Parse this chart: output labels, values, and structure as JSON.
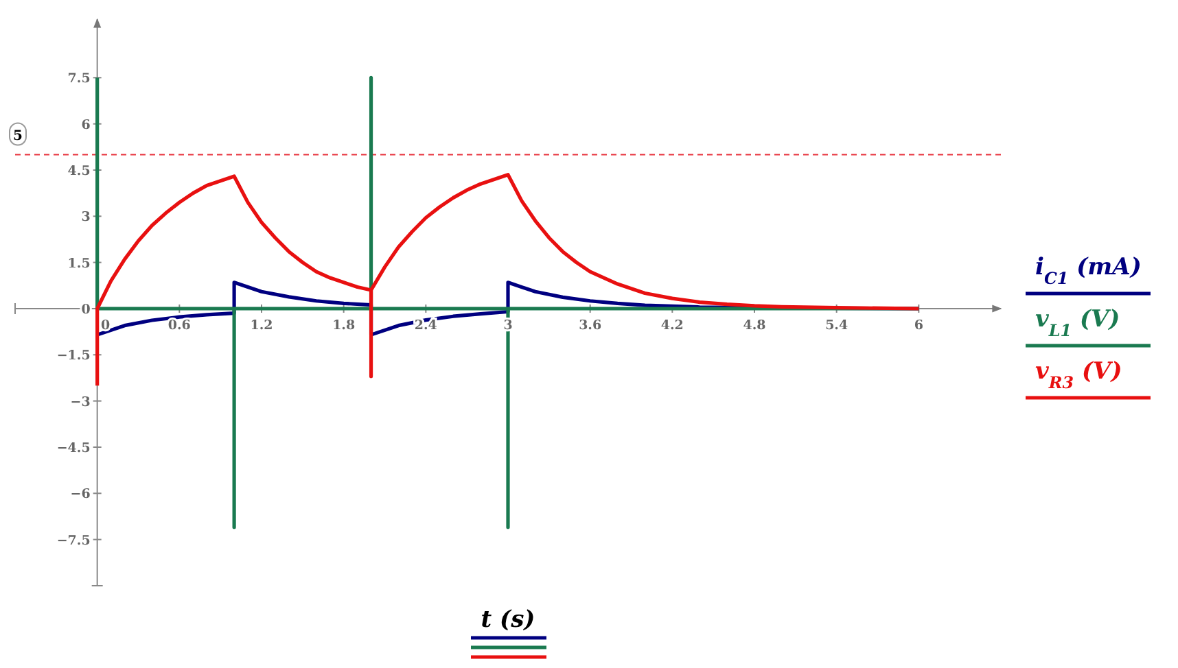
{
  "chart_data": {
    "type": "line",
    "xlabel": "t (s)",
    "xlim": [
      -0.6,
      6.6
    ],
    "ylim": [
      -9,
      9.4
    ],
    "xticks": [
      0,
      0.6,
      1.2,
      1.8,
      2.4,
      3,
      3.6,
      4.2,
      4.8,
      5.4,
      6
    ],
    "yticks": [
      -7.5,
      -6,
      -4.5,
      -3,
      -1.5,
      0,
      1.5,
      3,
      4.5,
      6,
      7.5
    ],
    "grid": false,
    "legend": "right",
    "marker": "none",
    "line_style": "solid",
    "ref_lines": [
      {
        "axis": "y",
        "value": 5,
        "label": "5",
        "color": "#e8323c",
        "line_style": "dashed"
      }
    ],
    "series": [
      {
        "name": "i$_{C1}$ (mA)",
        "color": "#000080",
        "x": [
          0,
          0.2,
          0.4,
          0.6,
          0.8,
          1,
          1,
          1.2,
          1.4,
          1.6,
          1.8,
          2,
          2,
          2.2,
          2.4,
          2.6,
          2.8,
          3,
          3,
          3.2,
          3.4,
          3.6,
          3.8,
          4,
          4.4,
          5,
          6
        ],
        "values": [
          -0.85,
          -0.55,
          -0.38,
          -0.27,
          -0.2,
          -0.15,
          0.85,
          0.55,
          0.38,
          0.25,
          0.17,
          0.12,
          -0.85,
          -0.55,
          -0.37,
          -0.25,
          -0.17,
          -0.1,
          0.85,
          0.55,
          0.37,
          0.25,
          0.17,
          0.11,
          0.05,
          0.02,
          0
        ]
      },
      {
        "name": "v$_{L1}$ (V)",
        "color": "#1a7a50",
        "x": [
          0,
          0,
          1,
          1,
          1,
          2,
          2,
          2,
          3,
          3,
          3,
          6
        ],
        "values": [
          7.5,
          0,
          0,
          -7.1,
          0,
          0,
          7.5,
          0,
          0,
          -7.1,
          0,
          0
        ]
      },
      {
        "name": "v$_{R3}$ (V)",
        "color": "#e81010",
        "x": [
          0,
          0,
          0.1,
          0.2,
          0.3,
          0.4,
          0.5,
          0.6,
          0.7,
          0.8,
          0.9,
          1,
          1.1,
          1.2,
          1.3,
          1.4,
          1.5,
          1.6,
          1.7,
          1.8,
          1.9,
          2,
          2,
          2,
          2.1,
          2.2,
          2.3,
          2.4,
          2.5,
          2.6,
          2.7,
          2.8,
          2.9,
          3,
          3.1,
          3.2,
          3.3,
          3.4,
          3.5,
          3.6,
          3.8,
          4,
          4.2,
          4.4,
          4.6,
          4.8,
          5,
          5.4,
          6
        ],
        "values": [
          -2.5,
          0,
          0.9,
          1.6,
          2.2,
          2.7,
          3.1,
          3.45,
          3.75,
          4,
          4.15,
          4.3,
          3.45,
          2.8,
          2.3,
          1.85,
          1.5,
          1.2,
          1,
          0.85,
          0.7,
          0.6,
          -2.2,
          0.6,
          1.35,
          2,
          2.5,
          2.95,
          3.3,
          3.6,
          3.85,
          4.05,
          4.2,
          4.35,
          3.5,
          2.85,
          2.3,
          1.85,
          1.5,
          1.2,
          0.8,
          0.5,
          0.33,
          0.21,
          0.14,
          0.09,
          0.06,
          0.03,
          0
        ]
      }
    ]
  }
}
